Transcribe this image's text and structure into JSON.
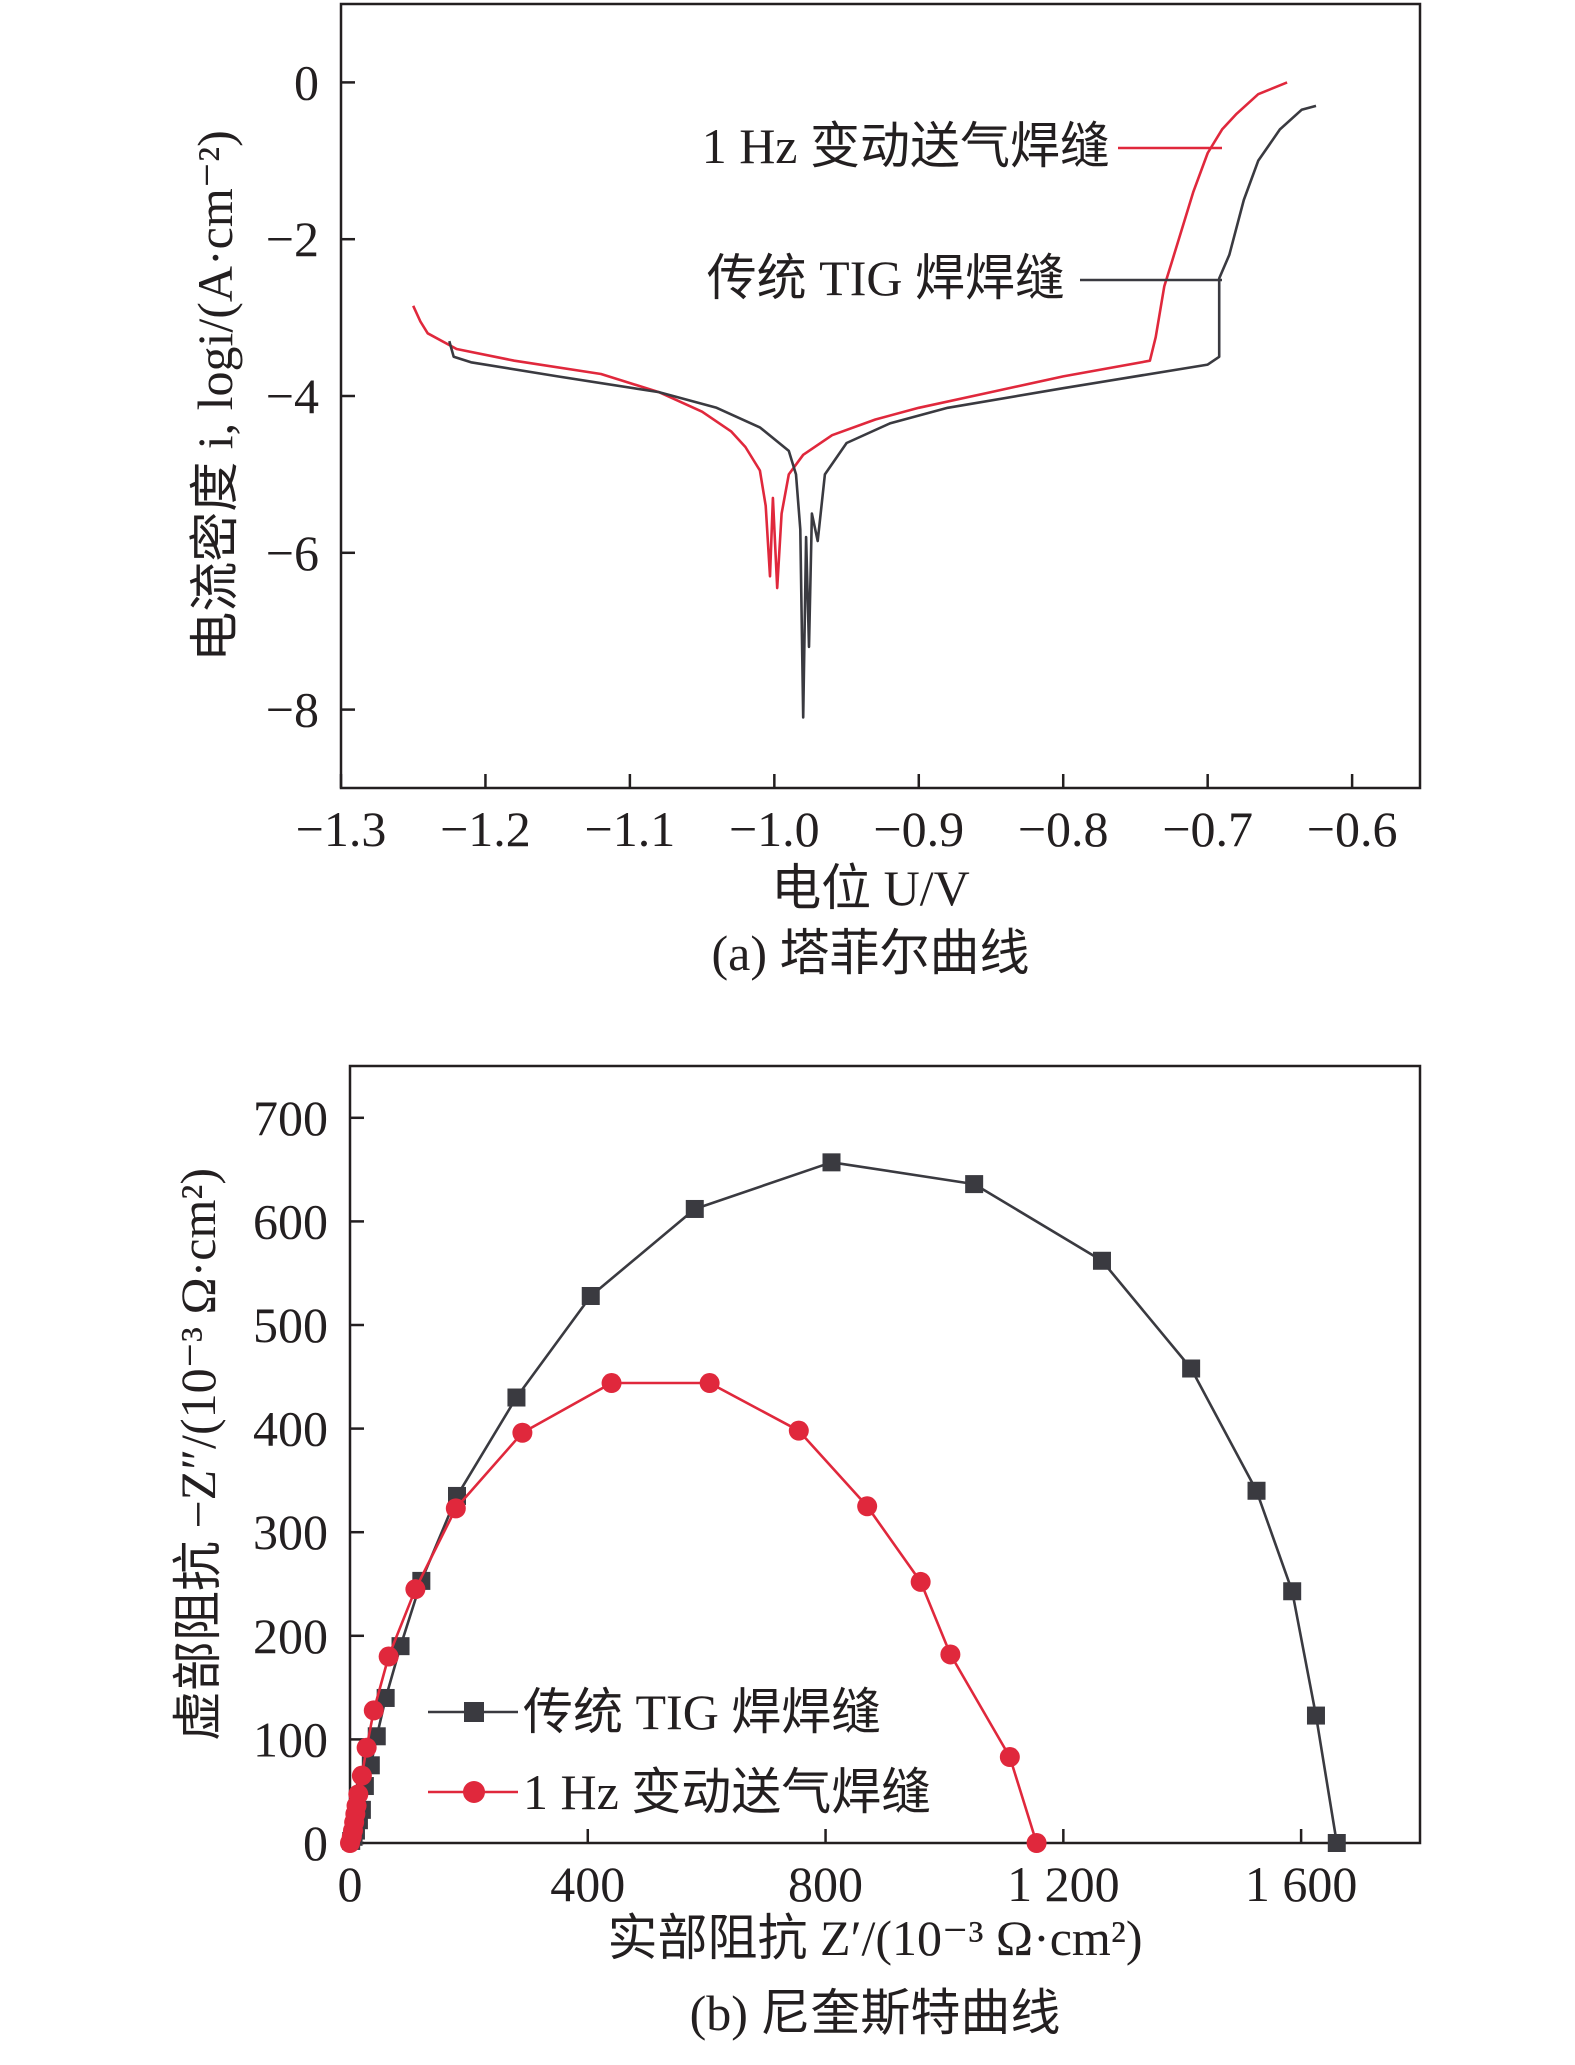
{
  "colors": {
    "tig": "#3a3a40",
    "vgf": "#e0283c",
    "axis": "#231f20"
  },
  "chart_data": [
    {
      "type": "line",
      "caption": "(a) 塔菲尔曲线",
      "xlabel": "电位 U/V",
      "ylabel": "电流密度 i, logi/(A·cm⁻²)",
      "xlim": [
        -1.3,
        -0.553
      ],
      "ylim": [
        -9,
        1
      ],
      "xticks": [
        -1.3,
        -1.2,
        -1.1,
        -1.0,
        -0.9,
        -0.8,
        -0.7,
        -0.6
      ],
      "xtick_labels": [
        "−1.3",
        "−1.2",
        "−1.1",
        "−1.0",
        "−0.9",
        "−0.8",
        "−0.7",
        "−0.6"
      ],
      "yticks": [
        0,
        -2,
        -4,
        -6,
        -8
      ],
      "ytick_labels": [
        "0",
        "−2",
        "−4",
        "−6",
        "−8"
      ],
      "legend": "callout labels",
      "series": [
        {
          "name": "1 Hz 变动送气焊缝",
          "color": "#e0283c",
          "points": [
            [
              -1.25,
              -2.85
            ],
            [
              -1.245,
              -3.05
            ],
            [
              -1.24,
              -3.2
            ],
            [
              -1.22,
              -3.4
            ],
            [
              -1.18,
              -3.55
            ],
            [
              -1.12,
              -3.72
            ],
            [
              -1.08,
              -3.95
            ],
            [
              -1.05,
              -4.2
            ],
            [
              -1.03,
              -4.45
            ],
            [
              -1.02,
              -4.65
            ],
            [
              -1.01,
              -4.95
            ],
            [
              -1.006,
              -5.4
            ],
            [
              -1.003,
              -6.3
            ],
            [
              -1.001,
              -5.3
            ],
            [
              -0.998,
              -6.45
            ],
            [
              -0.995,
              -5.5
            ],
            [
              -0.99,
              -5.0
            ],
            [
              -0.98,
              -4.75
            ],
            [
              -0.96,
              -4.5
            ],
            [
              -0.93,
              -4.3
            ],
            [
              -0.9,
              -4.15
            ],
            [
              -0.85,
              -3.95
            ],
            [
              -0.8,
              -3.75
            ],
            [
              -0.74,
              -3.55
            ],
            [
              -0.736,
              -3.25
            ],
            [
              -0.73,
              -2.6
            ],
            [
              -0.725,
              -2.3
            ],
            [
              -0.72,
              -2.0
            ],
            [
              -0.71,
              -1.4
            ],
            [
              -0.7,
              -0.9
            ],
            [
              -0.69,
              -0.6
            ],
            [
              -0.68,
              -0.4
            ],
            [
              -0.665,
              -0.15
            ],
            [
              -0.645,
              0.0
            ]
          ]
        },
        {
          "name": "传统 TIG 焊焊缝",
          "color": "#3a3a40",
          "points": [
            [
              -1.225,
              -3.3
            ],
            [
              -1.222,
              -3.5
            ],
            [
              -1.21,
              -3.57
            ],
            [
              -1.15,
              -3.75
            ],
            [
              -1.08,
              -3.95
            ],
            [
              -1.04,
              -4.15
            ],
            [
              -1.01,
              -4.4
            ],
            [
              -0.99,
              -4.7
            ],
            [
              -0.985,
              -5.0
            ],
            [
              -0.982,
              -5.7
            ],
            [
              -0.98,
              -8.1
            ],
            [
              -0.978,
              -5.8
            ],
            [
              -0.976,
              -7.2
            ],
            [
              -0.974,
              -5.5
            ],
            [
              -0.97,
              -5.85
            ],
            [
              -0.965,
              -5.0
            ],
            [
              -0.95,
              -4.6
            ],
            [
              -0.92,
              -4.35
            ],
            [
              -0.88,
              -4.15
            ],
            [
              -0.8,
              -3.9
            ],
            [
              -0.7,
              -3.6
            ],
            [
              -0.692,
              -3.5
            ],
            [
              -0.692,
              -2.5
            ],
            [
              -0.685,
              -2.2
            ],
            [
              -0.675,
              -1.5
            ],
            [
              -0.665,
              -1.0
            ],
            [
              -0.65,
              -0.6
            ],
            [
              -0.635,
              -0.35
            ],
            [
              -0.625,
              -0.3
            ]
          ]
        }
      ]
    },
    {
      "type": "scatter-line",
      "caption": "(b) 尼奎斯特曲线",
      "xlabel": "实部阻抗 Z′/(10⁻³ Ω·cm²)",
      "ylabel": "虚部阻抗 −Z″/(10⁻³ Ω·cm²)",
      "xlim": [
        0,
        1800
      ],
      "ylim": [
        0,
        750
      ],
      "xticks": [
        0,
        400,
        800,
        1200,
        1600
      ],
      "xtick_labels": [
        "0",
        "400",
        "800",
        "1 200",
        "1 600"
      ],
      "yticks": [
        0,
        100,
        200,
        300,
        400,
        500,
        600,
        700
      ],
      "ytick_labels": [
        "0",
        "100",
        "200",
        "300",
        "400",
        "500",
        "600",
        "700"
      ],
      "legend": "bottom-left",
      "series": [
        {
          "name": "传统 TIG 焊焊缝",
          "color": "#3a3a40",
          "marker": "square",
          "points": [
            [
              2,
              2
            ],
            [
              6,
              6
            ],
            [
              10,
              12
            ],
            [
              15,
              22
            ],
            [
              20,
              32
            ],
            [
              25,
              55
            ],
            [
              35,
              75
            ],
            [
              45,
              103
            ],
            [
              60,
              140
            ],
            [
              85,
              190
            ],
            [
              120,
              253
            ],
            [
              180,
              335
            ],
            [
              280,
              430
            ],
            [
              405,
              528
            ],
            [
              580,
              612
            ],
            [
              810,
              657
            ],
            [
              1050,
              636
            ],
            [
              1265,
              562
            ],
            [
              1415,
              458
            ],
            [
              1525,
              340
            ],
            [
              1585,
              243
            ],
            [
              1625,
              123
            ],
            [
              1660,
              0
            ]
          ]
        },
        {
          "name": "1 Hz 变动送气焊缝",
          "color": "#e0283c",
          "marker": "circle",
          "points": [
            [
              0,
              0
            ],
            [
              3,
              6
            ],
            [
              5,
              12
            ],
            [
              7,
              20
            ],
            [
              9,
              28
            ],
            [
              11,
              36
            ],
            [
              14,
              47
            ],
            [
              20,
              65
            ],
            [
              28,
              92
            ],
            [
              40,
              128
            ],
            [
              65,
              180
            ],
            [
              110,
              245
            ],
            [
              178,
              323
            ],
            [
              290,
              396
            ],
            [
              440,
              444
            ],
            [
              605,
              444
            ],
            [
              755,
              398
            ],
            [
              870,
              325
            ],
            [
              960,
              252
            ],
            [
              1010,
              182
            ],
            [
              1110,
              83
            ],
            [
              1155,
              0
            ]
          ]
        }
      ]
    }
  ]
}
